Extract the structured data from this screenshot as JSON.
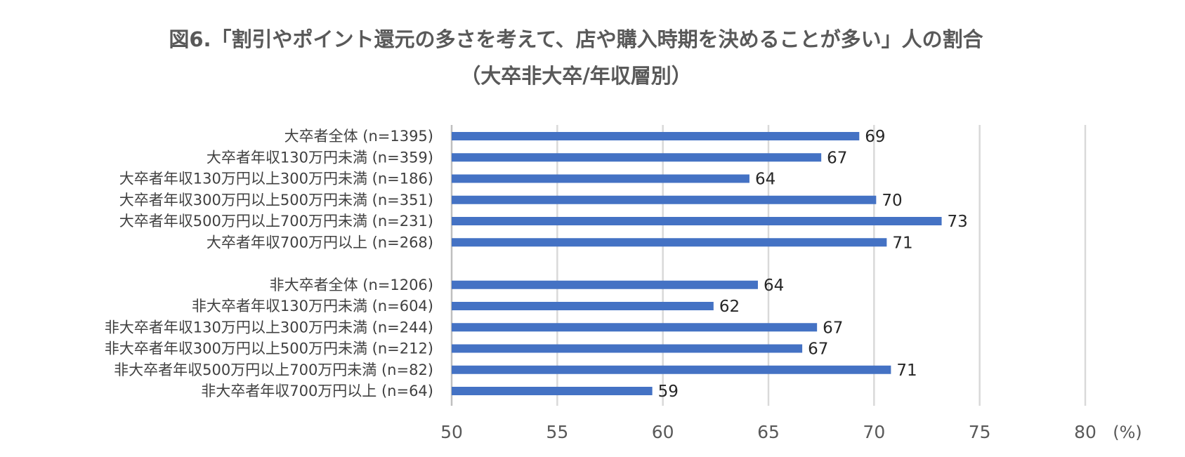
{
  "chart_data": {
    "type": "bar",
    "orientation": "horizontal",
    "title": "図6.「割引やポイント還元の多さを考えて、店や購入時期を決めることが多い」人の割合",
    "subtitle": "（大卒非大卒/年収層別）",
    "unit": "(%)",
    "xlim": [
      50,
      80
    ],
    "ticks": [
      50,
      55,
      60,
      65,
      70,
      75,
      80
    ],
    "grid": true,
    "bar_color": "#4472C4",
    "grid_color": "#D9D9D9",
    "categories": [
      "大卒者全体 (n=1395)",
      "大卒者年収130万円未満 (n=359)",
      "大卒者年収130万円以上300万円未満 (n=186)",
      "大卒者年収300万円以上500万円未満 (n=351)",
      "大卒者年収500万円以上700万円未満 (n=231)",
      "大卒者年収700万円以上 (n=268)",
      "",
      "非大卒者全体 (n=1206)",
      "非大卒者年収130万円未満 (n=604)",
      "非大卒者年収130万円以上300万円未満 (n=244)",
      "非大卒者年収300万円以上500万円未満 (n=212)",
      "非大卒者年収500万円以上700万円未満 (n=82)",
      "非大卒者年収700万円以上 (n=64)"
    ],
    "values": [
      69.3,
      67.5,
      64.1,
      70.1,
      73.2,
      70.6,
      null,
      64.5,
      62.4,
      67.3,
      66.6,
      70.8,
      59.5
    ],
    "data_labels": [
      "69",
      "67",
      "64",
      "70",
      "73",
      "71",
      "",
      "64",
      "62",
      "67",
      "67",
      "71",
      "59"
    ]
  }
}
